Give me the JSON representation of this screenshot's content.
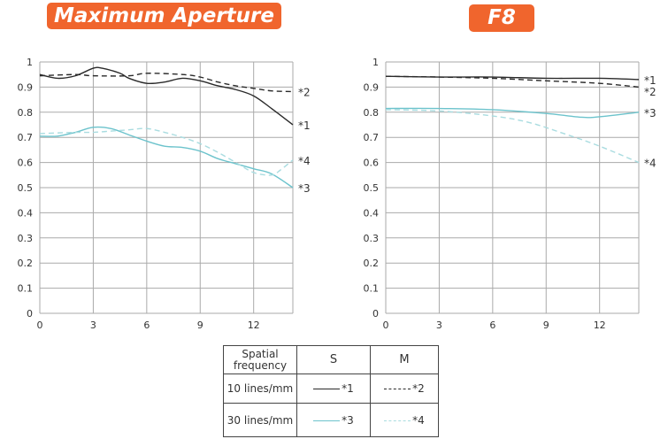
{
  "chart_data": [
    {
      "type": "line",
      "title": "Maximum Aperture",
      "xlabel": "",
      "ylabel": "",
      "xlim": [
        0,
        14.2
      ],
      "ylim": [
        0,
        1
      ],
      "xticks": [
        "0",
        "3",
        "6",
        "9",
        "12"
      ],
      "yticks": [
        "0",
        "0.1",
        "0.2",
        "0.3",
        "0.4",
        "0.5",
        "0.6",
        "0.7",
        "0.8",
        "0.9",
        "1"
      ],
      "grid": true,
      "series": [
        {
          "name": "*1",
          "x": [
            0,
            1,
            2,
            3,
            3.5,
            4.5,
            5,
            6,
            7,
            8,
            9,
            10,
            11,
            12,
            13,
            14.2
          ],
          "y": [
            0.95,
            0.935,
            0.945,
            0.975,
            0.975,
            0.955,
            0.935,
            0.915,
            0.92,
            0.935,
            0.925,
            0.905,
            0.89,
            0.865,
            0.815,
            0.75
          ]
        },
        {
          "name": "*2",
          "x": [
            0,
            2,
            3,
            5,
            6,
            8,
            9,
            10,
            11,
            12,
            13,
            14.2
          ],
          "y": [
            0.945,
            0.95,
            0.945,
            0.945,
            0.955,
            0.95,
            0.94,
            0.92,
            0.905,
            0.895,
            0.885,
            0.882
          ]
        },
        {
          "name": "*3",
          "x": [
            0,
            1,
            2,
            3,
            4,
            5,
            6,
            7,
            8,
            9,
            10,
            11,
            12,
            13,
            14.2
          ],
          "y": [
            0.705,
            0.705,
            0.72,
            0.74,
            0.735,
            0.71,
            0.685,
            0.665,
            0.66,
            0.645,
            0.615,
            0.595,
            0.575,
            0.555,
            0.5
          ]
        },
        {
          "name": "*4",
          "x": [
            0,
            2,
            3,
            4,
            5,
            6,
            7,
            8,
            9,
            10,
            11,
            12,
            13,
            13.5,
            14.2
          ],
          "y": [
            0.715,
            0.72,
            0.72,
            0.725,
            0.73,
            0.735,
            0.72,
            0.7,
            0.675,
            0.64,
            0.6,
            0.56,
            0.55,
            0.57,
            0.61
          ]
        }
      ]
    },
    {
      "type": "line",
      "title": "F8",
      "xlabel": "",
      "ylabel": "",
      "xlim": [
        0,
        14.2
      ],
      "ylim": [
        0,
        1
      ],
      "xticks": [
        "0",
        "3",
        "6",
        "9",
        "12"
      ],
      "yticks": [
        "0",
        "0.1",
        "0.2",
        "0.3",
        "0.4",
        "0.5",
        "0.6",
        "0.7",
        "0.8",
        "0.9",
        "1"
      ],
      "grid": true,
      "series": [
        {
          "name": "*1",
          "x": [
            0,
            3,
            6,
            9,
            12,
            14.2
          ],
          "y": [
            0.943,
            0.94,
            0.94,
            0.935,
            0.935,
            0.93
          ]
        },
        {
          "name": "*2",
          "x": [
            0,
            3,
            6,
            9,
            12,
            14.2
          ],
          "y": [
            0.943,
            0.94,
            0.935,
            0.925,
            0.915,
            0.9
          ]
        },
        {
          "name": "*3",
          "x": [
            0,
            3,
            6,
            9,
            11,
            12,
            14.2
          ],
          "y": [
            0.815,
            0.815,
            0.81,
            0.795,
            0.78,
            0.782,
            0.8
          ]
        },
        {
          "name": "*4",
          "x": [
            0,
            3,
            6,
            8,
            10,
            12,
            14.2
          ],
          "y": [
            0.81,
            0.805,
            0.785,
            0.76,
            0.715,
            0.665,
            0.6
          ]
        }
      ]
    }
  ],
  "legend": {
    "header": [
      "Spatial frequency",
      "S",
      "M"
    ],
    "rows": [
      {
        "label": "10 lines/mm",
        "s": "*1",
        "m": "*2"
      },
      {
        "label": "30 lines/mm",
        "s": "*3",
        "m": "*4"
      }
    ]
  },
  "colors": {
    "accent": "#f0652d",
    "black": "#2a2a2a",
    "cyan": "#6cc3cc"
  }
}
